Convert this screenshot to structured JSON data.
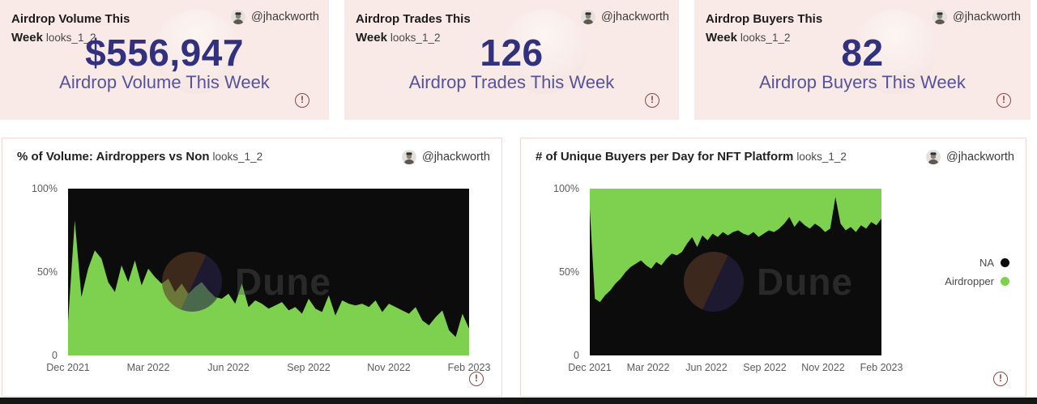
{
  "owner": {
    "handle": "@jhackworth"
  },
  "colors": {
    "card_background": "#f9eae7",
    "accent_green": "#7dd14f",
    "series_black": "#0c0c0c",
    "value_indigo": "#32317e",
    "label_purple": "#55539b",
    "alert_red": "#8a4545",
    "chart_border": "#f0d8d4"
  },
  "kpi_cards": [
    {
      "title": "Airdrop Volume This Week",
      "tag": "looks_1_2",
      "handle": "@jhackworth",
      "value": "$556,947",
      "label": "Airdrop Volume This Week"
    },
    {
      "title": "Airdrop Trades This Week",
      "tag": "looks_1_2",
      "handle": "@jhackworth",
      "value": "126",
      "label": "Airdrop Trades This Week"
    },
    {
      "title": "Airdrop Buyers This Week",
      "tag": "looks_1_2",
      "handle": "@jhackworth",
      "value": "82",
      "label": "Airdrop Buyers This Week"
    }
  ],
  "alert_glyph": "!",
  "watermark_text": "Dune",
  "chart_data": [
    {
      "type": "area",
      "title": "% of Volume: Airdroppers vs Non",
      "tag": "looks_1_2",
      "handle": "@jhackworth",
      "stacked_to_100": true,
      "grid": false,
      "ylim": [
        0,
        100
      ],
      "y_ticks": [
        "100%",
        "50%",
        "0"
      ],
      "x_ticks": [
        "Dec 2021",
        "Mar 2022",
        "Jun 2022",
        "Sep 2022",
        "Nov 2022",
        "Feb 2023"
      ],
      "series": [
        {
          "name": "Airdropper",
          "color": "#7dd14f",
          "position": "bottom",
          "values": [
            20,
            81,
            35,
            52,
            63,
            58,
            44,
            38,
            54,
            44,
            57,
            42,
            52,
            47,
            43,
            46,
            38,
            43,
            37,
            41,
            44,
            39,
            35,
            34,
            37,
            31,
            43,
            29,
            33,
            31,
            28,
            30,
            32,
            27,
            29,
            25,
            34,
            28,
            26,
            36,
            24,
            33,
            31,
            30,
            31,
            29,
            33,
            26,
            31,
            29,
            27,
            25,
            29,
            21,
            18,
            23,
            27,
            15,
            11,
            25,
            16
          ]
        },
        {
          "name": "Non",
          "color": "#0c0c0c",
          "position": "fill-to-100"
        }
      ],
      "legend": null
    },
    {
      "type": "area",
      "title": "# of Unique Buyers per Day for NFT Platform",
      "tag": "looks_1_2",
      "handle": "@jhackworth",
      "stacked_to_100": true,
      "grid": false,
      "ylim": [
        0,
        100
      ],
      "y_ticks": [
        "100%",
        "50%",
        "0"
      ],
      "x_ticks": [
        "Dec 2021",
        "Mar 2022",
        "Jun 2022",
        "Sep 2022",
        "Nov 2022",
        "Feb 2023"
      ],
      "series": [
        {
          "name": "NA",
          "color": "#0c0c0c",
          "position": "bottom",
          "values": [
            88,
            34,
            32,
            36,
            39,
            43,
            46,
            50,
            53,
            55,
            57,
            54,
            52,
            56,
            54,
            58,
            61,
            60,
            62,
            67,
            71,
            65,
            72,
            69,
            73,
            71,
            74,
            72,
            74,
            75,
            73,
            72,
            74,
            71,
            73,
            75,
            74,
            76,
            79,
            83,
            77,
            81,
            78,
            76,
            79,
            77,
            74,
            76,
            95,
            79,
            75,
            77,
            74,
            78,
            76,
            80,
            78,
            82
          ]
        },
        {
          "name": "Airdropper",
          "color": "#7dd14f",
          "position": "fill-to-100"
        }
      ],
      "legend": [
        {
          "label": "NA",
          "color": "#0c0c0c"
        },
        {
          "label": "Airdropper",
          "color": "#7dd14f"
        }
      ]
    }
  ]
}
